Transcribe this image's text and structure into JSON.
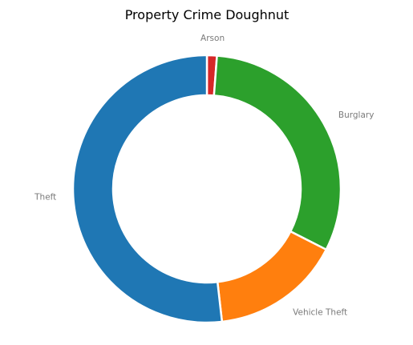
{
  "chart_data": {
    "type": "pie",
    "variant": "doughnut",
    "title": "Property Crime Doughnut",
    "start_angle_deg": 90,
    "direction": "clockwise",
    "slices": [
      {
        "label": "Arson",
        "value": 1.2,
        "color": "#d62728"
      },
      {
        "label": "Burglary",
        "value": 31.3,
        "color": "#2ca02c"
      },
      {
        "label": "Vehicle Theft",
        "value": 15.7,
        "color": "#ff7f0e"
      },
      {
        "label": "Theft",
        "value": 51.8,
        "color": "#1f77b4"
      }
    ],
    "legend": "none",
    "grid": false
  }
}
